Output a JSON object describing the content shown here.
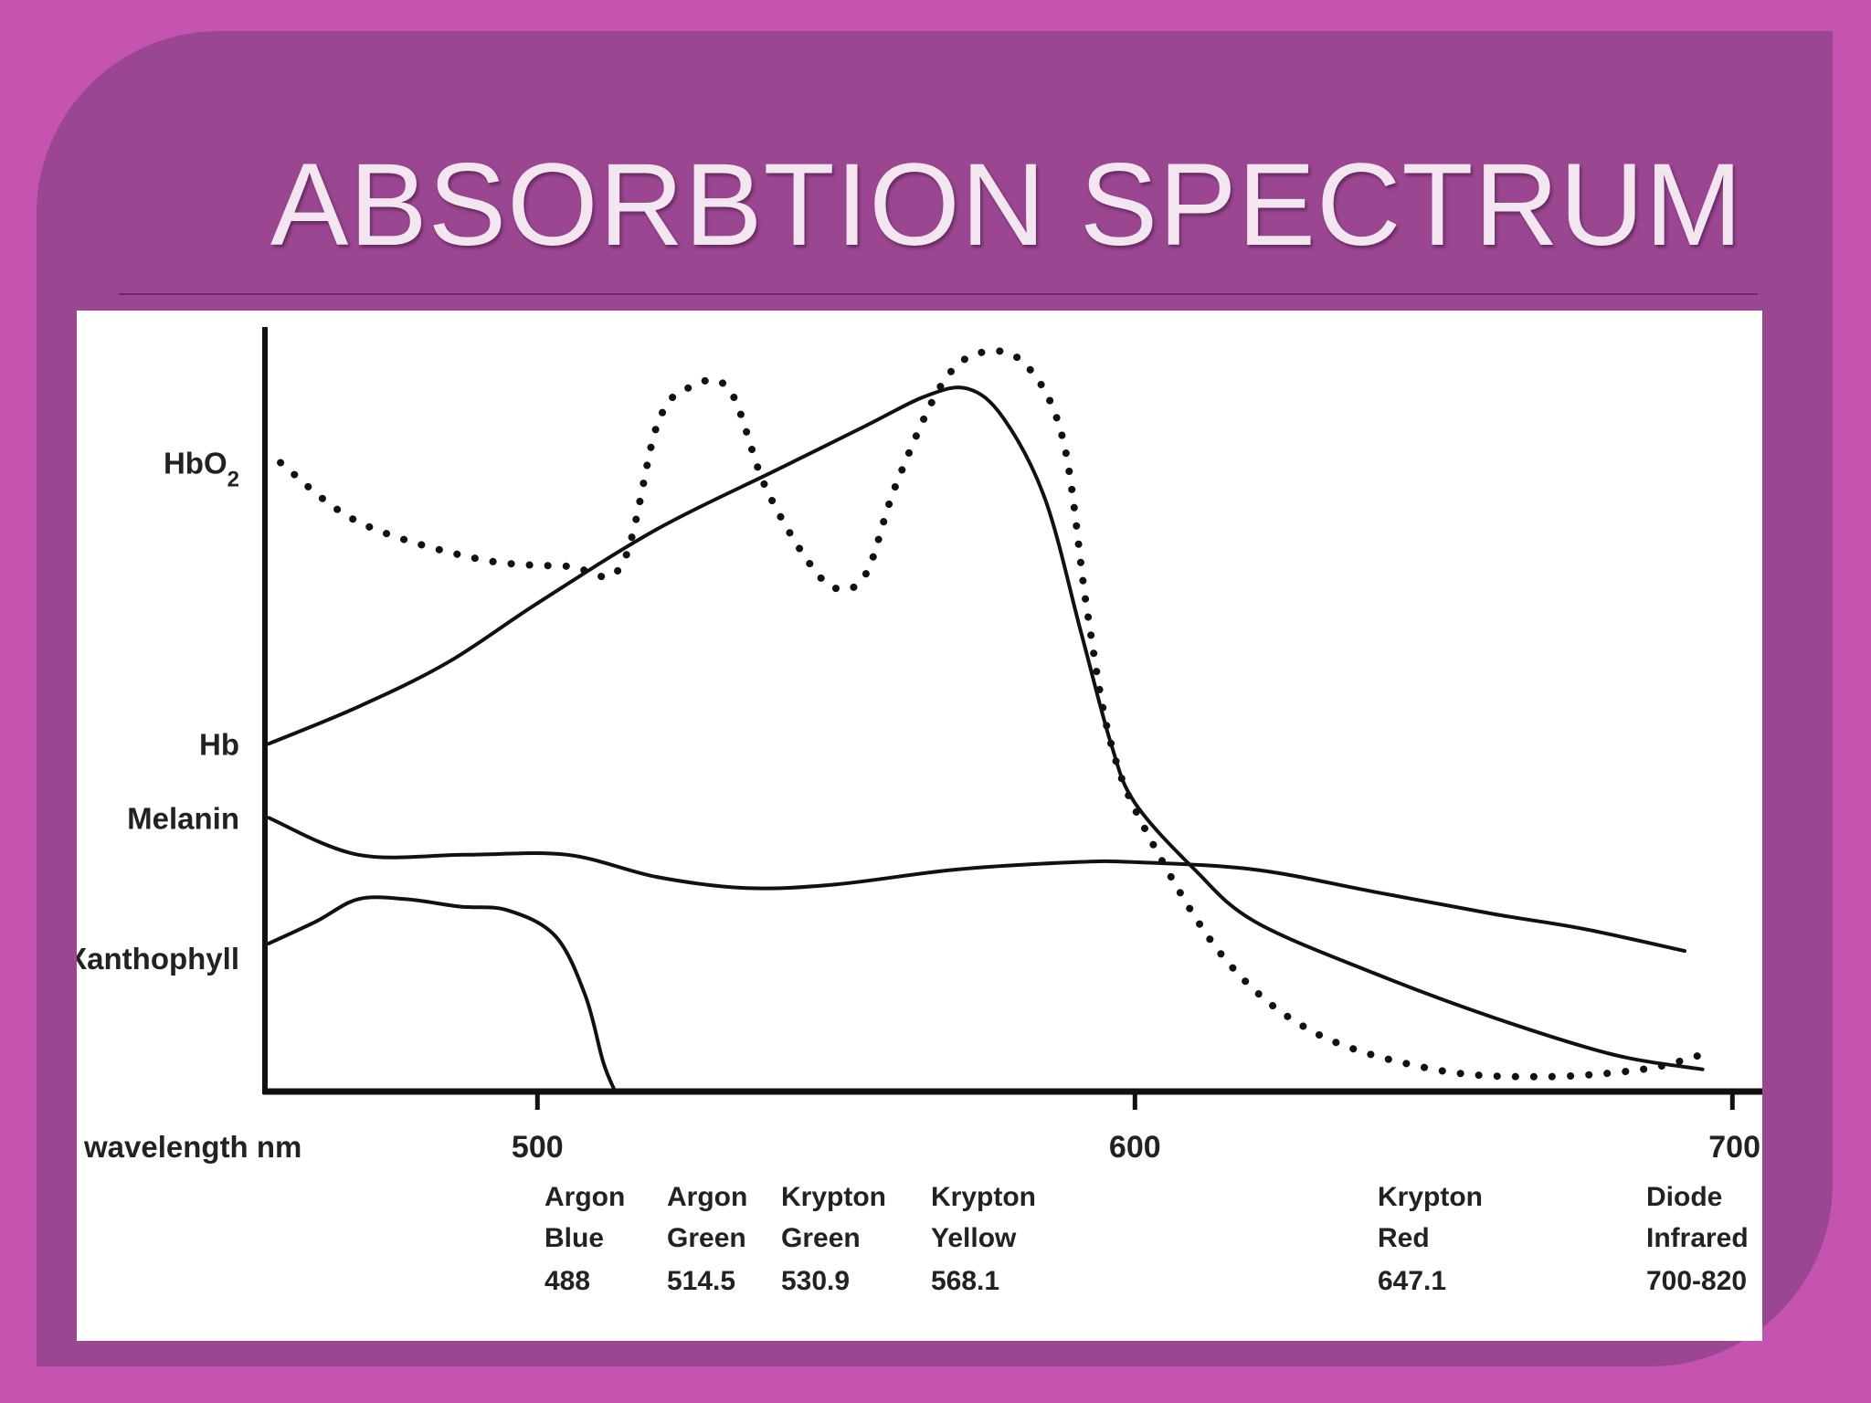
{
  "slide": {
    "title": "ABSORBTION SPECTRUM"
  },
  "chart_data": {
    "type": "line",
    "title": "",
    "xlabel": "wavelength nm",
    "ylabel": "",
    "xlim": [
      455,
      705
    ],
    "ylim": [
      0,
      100
    ],
    "x_ticks": [
      500,
      600,
      700
    ],
    "y_labels": [
      {
        "text": "HbO2",
        "main": "HbO",
        "sub": "2",
        "y": 85
      },
      {
        "text": "Hb",
        "y": 47
      },
      {
        "text": "Melanin",
        "y": 37
      },
      {
        "text": "Xanthophyll",
        "y": 18
      }
    ],
    "series": [
      {
        "name": "HbO2",
        "style": "dotted",
        "points": [
          [
            457,
            85
          ],
          [
            470,
            77
          ],
          [
            490,
            72
          ],
          [
            505,
            71
          ],
          [
            514,
            71
          ],
          [
            520,
            90
          ],
          [
            525,
            95
          ],
          [
            532,
            95
          ],
          [
            538,
            82
          ],
          [
            545,
            72
          ],
          [
            550,
            68
          ],
          [
            555,
            70
          ],
          [
            560,
            82
          ],
          [
            568,
            96
          ],
          [
            575,
            100
          ],
          [
            582,
            98
          ],
          [
            588,
            88
          ],
          [
            592,
            65
          ],
          [
            596,
            47
          ],
          [
            602,
            35
          ],
          [
            615,
            18
          ],
          [
            630,
            8
          ],
          [
            650,
            3
          ],
          [
            668,
            2
          ],
          [
            685,
            3
          ],
          [
            695,
            5
          ]
        ]
      },
      {
        "name": "Hb",
        "style": "solid",
        "points": [
          [
            455,
            47
          ],
          [
            470,
            52
          ],
          [
            485,
            58
          ],
          [
            500,
            66
          ],
          [
            520,
            76
          ],
          [
            540,
            84
          ],
          [
            555,
            90
          ],
          [
            565,
            94
          ],
          [
            572,
            95
          ],
          [
            578,
            91
          ],
          [
            585,
            80
          ],
          [
            591,
            62
          ],
          [
            596,
            47
          ],
          [
            600,
            39
          ],
          [
            610,
            30
          ],
          [
            620,
            23
          ],
          [
            640,
            16
          ],
          [
            660,
            10
          ],
          [
            680,
            5
          ],
          [
            695,
            3
          ]
        ]
      },
      {
        "name": "Melanin",
        "style": "solid",
        "points": [
          [
            455,
            37
          ],
          [
            470,
            32
          ],
          [
            488,
            32
          ],
          [
            505,
            32
          ],
          [
            520,
            29
          ],
          [
            535,
            27.5
          ],
          [
            550,
            28
          ],
          [
            570,
            30
          ],
          [
            590,
            31
          ],
          [
            600,
            31
          ],
          [
            620,
            30
          ],
          [
            640,
            27
          ],
          [
            660,
            24
          ],
          [
            675,
            22
          ],
          [
            692,
            19
          ]
        ]
      },
      {
        "name": "Xanthophyll",
        "style": "solid",
        "points": [
          [
            455,
            20
          ],
          [
            463,
            23
          ],
          [
            470,
            26
          ],
          [
            478,
            26
          ],
          [
            487,
            25
          ],
          [
            495,
            24.5
          ],
          [
            503,
            21
          ],
          [
            508,
            13
          ],
          [
            511,
            4
          ],
          [
            513,
            0
          ]
        ]
      }
    ],
    "laser_lines": [
      {
        "name": "Argon",
        "color": "Blue",
        "wavelength": "488"
      },
      {
        "name": "Argon",
        "color": "Green",
        "wavelength": "514.5"
      },
      {
        "name": "Krypton",
        "color": "Green",
        "wavelength": "530.9"
      },
      {
        "name": "Krypton",
        "color": "Yellow",
        "wavelength": "568.1"
      },
      {
        "name": "Krypton",
        "color": "Red",
        "wavelength": "647.1"
      },
      {
        "name": "Diode",
        "color": "Infrared",
        "wavelength": "700-820"
      }
    ],
    "grid": false,
    "legend": "none"
  }
}
